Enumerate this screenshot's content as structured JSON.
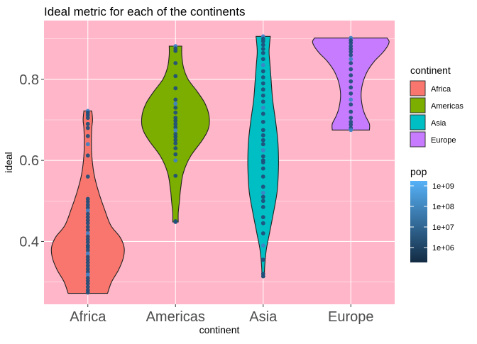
{
  "chart_data": {
    "type": "violin",
    "title": "Ideal metric for each of the continents",
    "xlabel": "continent",
    "ylabel": "ideal",
    "ylim": [
      0.245,
      0.945
    ],
    "yticks": [
      "0.4",
      "0.6",
      "0.8"
    ],
    "ytick_values": [
      0.4,
      0.6,
      0.8
    ],
    "categories": [
      "Africa",
      "Americas",
      "Asia",
      "Europe"
    ],
    "panel_background": "#FFB6C8",
    "grid": true,
    "legend_placement": "right",
    "violins": [
      {
        "name": "Africa",
        "color": "#F8766D",
        "range": [
          0.272,
          0.722
        ],
        "profile": [
          [
            0.272,
            0.5
          ],
          [
            0.3,
            0.6
          ],
          [
            0.33,
            0.78
          ],
          [
            0.36,
            0.9
          ],
          [
            0.385,
            0.92
          ],
          [
            0.41,
            0.82
          ],
          [
            0.44,
            0.58
          ],
          [
            0.48,
            0.42
          ],
          [
            0.52,
            0.28
          ],
          [
            0.56,
            0.17
          ],
          [
            0.6,
            0.11
          ],
          [
            0.64,
            0.09
          ],
          [
            0.68,
            0.1
          ],
          [
            0.7,
            0.12
          ],
          [
            0.722,
            0.1
          ]
        ]
      },
      {
        "name": "Americas",
        "color": "#7CAE00",
        "range": [
          0.448,
          0.882
        ],
        "profile": [
          [
            0.448,
            0.07
          ],
          [
            0.47,
            0.07
          ],
          [
            0.5,
            0.1
          ],
          [
            0.53,
            0.13
          ],
          [
            0.57,
            0.2
          ],
          [
            0.61,
            0.38
          ],
          [
            0.65,
            0.68
          ],
          [
            0.68,
            0.84
          ],
          [
            0.71,
            0.85
          ],
          [
            0.74,
            0.75
          ],
          [
            0.77,
            0.55
          ],
          [
            0.8,
            0.32
          ],
          [
            0.83,
            0.2
          ],
          [
            0.86,
            0.16
          ],
          [
            0.882,
            0.16
          ]
        ]
      },
      {
        "name": "Asia",
        "color": "#00BFC4",
        "range": [
          0.312,
          0.906
        ],
        "profile": [
          [
            0.312,
            0.03
          ],
          [
            0.34,
            0.04
          ],
          [
            0.38,
            0.08
          ],
          [
            0.42,
            0.16
          ],
          [
            0.47,
            0.26
          ],
          [
            0.52,
            0.35
          ],
          [
            0.56,
            0.38
          ],
          [
            0.6,
            0.39
          ],
          [
            0.65,
            0.37
          ],
          [
            0.7,
            0.31
          ],
          [
            0.75,
            0.24
          ],
          [
            0.8,
            0.2
          ],
          [
            0.84,
            0.17
          ],
          [
            0.87,
            0.15
          ],
          [
            0.906,
            0.18
          ]
        ]
      },
      {
        "name": "Europe",
        "color": "#C77CFF",
        "range": [
          0.675,
          0.902
        ],
        "profile": [
          [
            0.675,
            0.47
          ],
          [
            0.69,
            0.47
          ],
          [
            0.71,
            0.37
          ],
          [
            0.73,
            0.3
          ],
          [
            0.76,
            0.26
          ],
          [
            0.79,
            0.3
          ],
          [
            0.82,
            0.42
          ],
          [
            0.845,
            0.6
          ],
          [
            0.865,
            0.8
          ],
          [
            0.882,
            0.93
          ],
          [
            0.893,
            0.97
          ],
          [
            0.902,
            0.92
          ]
        ]
      }
    ],
    "points": [
      {
        "category": "Africa",
        "values": [
          0.722,
          0.718,
          0.712,
          0.705,
          0.69,
          0.68,
          0.66,
          0.64,
          0.612,
          0.56,
          0.505,
          0.498,
          0.49,
          0.483,
          0.476,
          0.468,
          0.46,
          0.452,
          0.445,
          0.436,
          0.428,
          0.42,
          0.412,
          0.405,
          0.398,
          0.39,
          0.385,
          0.378,
          0.37,
          0.362,
          0.355,
          0.348,
          0.34,
          0.332,
          0.325,
          0.318,
          0.31,
          0.303,
          0.296,
          0.288,
          0.28,
          0.274
        ]
      },
      {
        "category": "Americas",
        "values": [
          0.882,
          0.876,
          0.87,
          0.84,
          0.808,
          0.778,
          0.75,
          0.74,
          0.73,
          0.718,
          0.705,
          0.698,
          0.69,
          0.682,
          0.674,
          0.665,
          0.658,
          0.65,
          0.642,
          0.63,
          0.615,
          0.6,
          0.562,
          0.45,
          0.448
        ]
      },
      {
        "category": "Asia",
        "values": [
          0.906,
          0.9,
          0.894,
          0.885,
          0.875,
          0.865,
          0.85,
          0.835,
          0.82,
          0.805,
          0.79,
          0.775,
          0.76,
          0.745,
          0.73,
          0.715,
          0.695,
          0.675,
          0.662,
          0.65,
          0.64,
          0.625,
          0.61,
          0.6,
          0.595,
          0.58,
          0.56,
          0.535,
          0.52,
          0.51,
          0.5,
          0.485,
          0.46,
          0.445,
          0.42,
          0.39,
          0.355,
          0.32,
          0.314
        ]
      },
      {
        "category": "Europe",
        "values": [
          0.902,
          0.896,
          0.89,
          0.882,
          0.875,
          0.868,
          0.86,
          0.85,
          0.84,
          0.825,
          0.81,
          0.795,
          0.78,
          0.765,
          0.75,
          0.738,
          0.72,
          0.705,
          0.695,
          0.688,
          0.68,
          0.675
        ]
      }
    ],
    "legends": [
      {
        "title": "continent",
        "type": "fill",
        "items": [
          {
            "label": "Africa",
            "color": "#F8766D"
          },
          {
            "label": "Americas",
            "color": "#7CAE00"
          },
          {
            "label": "Asia",
            "color": "#00BFC4"
          },
          {
            "label": "Europe",
            "color": "#C77CFF"
          }
        ]
      },
      {
        "title": "pop",
        "type": "colorbar",
        "colors": [
          "#132B43",
          "#56B1F7"
        ],
        "breaks": [
          "1e+09",
          "1e+08",
          "1e+07",
          "1e+06"
        ]
      }
    ]
  }
}
